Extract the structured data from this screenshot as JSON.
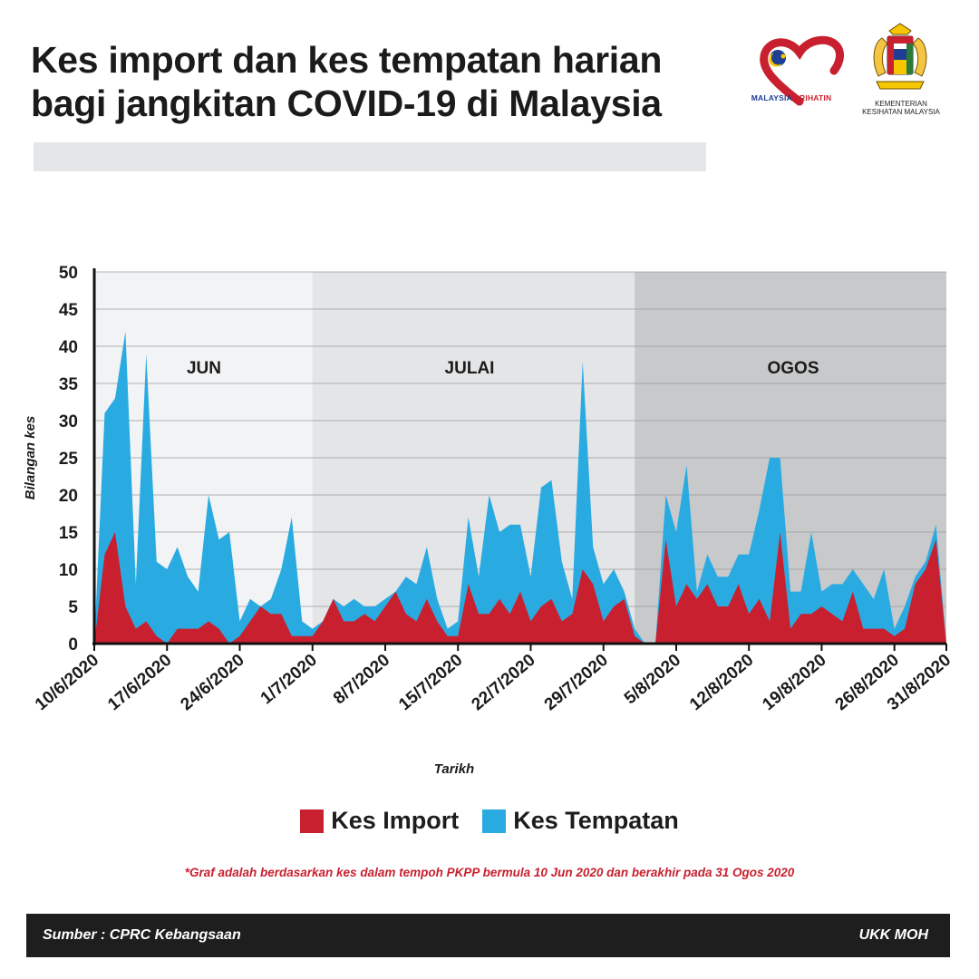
{
  "header": {
    "title": "Kes import dan kes tempatan harian bagi jangkitan COVID-19 di Malaysia",
    "logo_prihatin_a": "MALAYSIA",
    "logo_prihatin_b": "PRIHATIN",
    "logo_kkm": "KEMENTERIAN KESIHATAN MALAYSIA"
  },
  "colors": {
    "import": "#c8202f",
    "tempatan": "#29abe2",
    "band_jun": "#f2f3f4",
    "band_julai": "#e4e5e6",
    "band_ogos": "#c8c9cb",
    "grid": "#9a9a9a"
  },
  "chart_data": {
    "type": "area",
    "stacked": true,
    "xlabel": "Tarikh",
    "ylabel": "Bilangan kes",
    "ylim": [
      0,
      50
    ],
    "yticks": [
      "0",
      "5",
      "10",
      "15",
      "20",
      "25",
      "30",
      "35",
      "40",
      "45",
      "50"
    ],
    "xtick_labels": [
      "10/6/2020",
      "17/6/2020",
      "24/6/2020",
      "1/7/2020",
      "8/7/2020",
      "15/7/2020",
      "22/7/2020",
      "29/7/2020",
      "5/8/2020",
      "12/8/2020",
      "19/8/2020",
      "26/8/2020",
      "31/8/2020"
    ],
    "xtick_days": [
      0,
      7,
      14,
      21,
      28,
      35,
      42,
      49,
      56,
      63,
      70,
      77,
      82
    ],
    "x_start": "10/6/2020",
    "x_end": "31/8/2020",
    "periods": [
      {
        "label": "JUN",
        "start": "10/6/2020",
        "end": "30/6/2020"
      },
      {
        "label": "JULAI",
        "start": "1/7/2020",
        "end": "31/7/2020"
      },
      {
        "label": "OGOS",
        "start": "1/8/2020",
        "end": "31/8/2020"
      }
    ],
    "series": [
      {
        "name": "Kes Import",
        "values": [
          0,
          12,
          15,
          5,
          2,
          3,
          1,
          0,
          2,
          2,
          2,
          3,
          2,
          0,
          1,
          3,
          5,
          4,
          4,
          1,
          1,
          1,
          3,
          6,
          3,
          3,
          4,
          3,
          5,
          7,
          4,
          3,
          6,
          3,
          1,
          1,
          8,
          4,
          4,
          6,
          4,
          7,
          3,
          5,
          6,
          3,
          4,
          10,
          8,
          3,
          5,
          6,
          1,
          0,
          0,
          14,
          5,
          8,
          6,
          8,
          5,
          5,
          8,
          4,
          6,
          3,
          15,
          2,
          4,
          4,
          5,
          4,
          3,
          7,
          2,
          2,
          2,
          1,
          2,
          8,
          10,
          14,
          0
        ]
      },
      {
        "name": "Kes Tempatan",
        "values": [
          0,
          19,
          18,
          37,
          6,
          36,
          10,
          10,
          11,
          7,
          5,
          17,
          12,
          15,
          2,
          3,
          0,
          2,
          6,
          16,
          2,
          1,
          0,
          0,
          2,
          3,
          1,
          2,
          1,
          0,
          5,
          5,
          7,
          3,
          1,
          2,
          9,
          5,
          16,
          9,
          12,
          9,
          6,
          16,
          16,
          8,
          2,
          28,
          5,
          5,
          5,
          1,
          1,
          0,
          0,
          6,
          10,
          16,
          1,
          4,
          4,
          4,
          4,
          8,
          12,
          22,
          10,
          5,
          3,
          11,
          2,
          4,
          5,
          3,
          6,
          4,
          8,
          1,
          3,
          1,
          1,
          2,
          0
        ]
      }
    ]
  },
  "legend": {
    "import_label": "Kes Import",
    "tempatan_label": "Kes Tempatan"
  },
  "footnote": "*Graf adalah berdasarkan kes dalam tempoh PKPP  bermula 10 Jun 2020 dan berakhir pada 31 Ogos 2020",
  "footer": {
    "source": "Sumber : CPRC Kebangsaan",
    "credit": "UKK MOH"
  }
}
